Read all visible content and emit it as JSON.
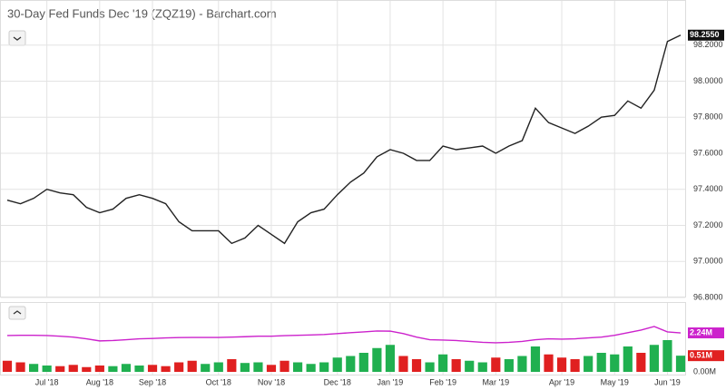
{
  "chart_data": [
    {
      "type": "line",
      "title": "30-Day Fed Funds Dec '19 (ZQZ19) - Barchart.com",
      "categories": [
        null,
        null,
        null,
        "Jul '18",
        null,
        null,
        null,
        "Aug '18",
        null,
        null,
        null,
        "Sep '18",
        null,
        null,
        null,
        null,
        "Oct '18",
        null,
        null,
        null,
        "Nov '18",
        null,
        null,
        null,
        null,
        "Dec '18",
        null,
        null,
        null,
        "Jan '19",
        null,
        null,
        null,
        "Feb '19",
        null,
        null,
        null,
        "Mar '19",
        null,
        null,
        null,
        null,
        "Apr '19",
        null,
        null,
        null,
        "May '19",
        null,
        null,
        null,
        "Jun '19",
        null
      ],
      "series": [
        {
          "color": "#222222",
          "values": [
            97.34,
            97.32,
            97.35,
            97.4,
            97.38,
            97.37,
            97.3,
            97.27,
            97.29,
            97.35,
            97.37,
            97.35,
            97.32,
            97.22,
            97.17,
            97.17,
            97.17,
            97.1,
            97.13,
            97.2,
            97.15,
            97.1,
            97.22,
            97.27,
            97.29,
            97.37,
            97.44,
            97.49,
            97.58,
            97.62,
            97.6,
            97.56,
            97.56,
            97.64,
            97.62,
            97.63,
            97.64,
            97.6,
            97.64,
            97.67,
            97.85,
            97.77,
            97.74,
            97.71,
            97.75,
            97.8,
            97.81,
            97.89,
            97.85,
            97.95,
            98.22,
            98.255
          ],
          "value_labels": [
            null,
            null,
            null,
            null,
            null,
            null,
            null,
            null,
            null,
            null,
            null,
            null,
            null,
            null,
            null,
            null,
            null,
            null,
            null,
            null,
            null,
            null,
            null,
            null,
            null,
            null,
            null,
            null,
            null,
            null,
            null,
            null,
            null,
            null,
            null,
            null,
            null,
            null,
            null,
            null,
            null,
            null,
            null,
            null,
            null,
            null,
            null,
            null,
            null,
            null,
            null,
            "98.2550"
          ]
        }
      ],
      "ylim": [
        96.8,
        98.45
      ],
      "yticks": [
        {
          "value": 96.8,
          "label": "96.8000"
        },
        {
          "value": 97.0,
          "label": "97.0000"
        },
        {
          "value": 97.2,
          "label": "97.2000"
        },
        {
          "value": 97.4,
          "label": "97.4000"
        },
        {
          "value": 97.6,
          "label": "97.6000"
        },
        {
          "value": 97.8,
          "label": "97.8000"
        },
        {
          "value": 98.0,
          "label": "98.0000"
        },
        {
          "value": 98.2,
          "label": "98.2000"
        }
      ],
      "grid": true
    },
    {
      "type": "bar",
      "series": [
        {
          "color": "#e02020",
          "up_color": "#20b050",
          "values": [
            0.35,
            0.3,
            0.25,
            0.2,
            0.18,
            0.22,
            0.15,
            0.2,
            0.18,
            0.25,
            0.2,
            0.22,
            0.18,
            0.3,
            0.35,
            0.25,
            0.3,
            0.4,
            0.28,
            0.3,
            0.22,
            0.35,
            0.3,
            0.25,
            0.3,
            0.45,
            0.5,
            0.6,
            0.75,
            0.85,
            0.5,
            0.4,
            0.3,
            0.55,
            0.4,
            0.35,
            0.3,
            0.45,
            0.4,
            0.5,
            0.8,
            0.55,
            0.45,
            0.4,
            0.5,
            0.6,
            0.55,
            0.8,
            0.6,
            0.85,
            1.0,
            0.51
          ],
          "value_labels": [
            null,
            null,
            null,
            null,
            null,
            null,
            null,
            null,
            null,
            null,
            null,
            null,
            null,
            null,
            null,
            null,
            null,
            null,
            null,
            null,
            null,
            null,
            null,
            null,
            null,
            null,
            null,
            null,
            null,
            null,
            null,
            null,
            null,
            null,
            null,
            null,
            null,
            null,
            null,
            null,
            null,
            null,
            null,
            null,
            null,
            null,
            null,
            null,
            null,
            null,
            null,
            "0.51M"
          ]
        },
        {
          "color": "#cc22cc",
          "axis": "y2",
          "type": "line",
          "values": [
            2.09,
            2.1,
            2.1,
            2.09,
            2.05,
            2.0,
            1.9,
            1.78,
            1.8,
            1.85,
            1.9,
            1.92,
            1.95,
            1.97,
            1.98,
            1.98,
            1.98,
            2.0,
            2.02,
            2.05,
            2.05,
            2.08,
            2.1,
            2.12,
            2.15,
            2.2,
            2.25,
            2.3,
            2.35,
            2.34,
            2.2,
            2.0,
            1.85,
            1.83,
            1.8,
            1.75,
            1.7,
            1.67,
            1.7,
            1.75,
            1.85,
            1.9,
            1.88,
            1.9,
            1.95,
            2.0,
            2.1,
            2.25,
            2.4,
            2.61,
            2.3,
            2.24
          ],
          "value_labels": [
            null,
            null,
            null,
            null,
            null,
            null,
            null,
            null,
            null,
            null,
            null,
            null,
            null,
            null,
            null,
            null,
            null,
            null,
            null,
            null,
            null,
            null,
            null,
            null,
            null,
            null,
            null,
            null,
            null,
            null,
            null,
            null,
            null,
            null,
            null,
            null,
            null,
            null,
            null,
            null,
            null,
            null,
            null,
            null,
            null,
            null,
            null,
            null,
            null,
            null,
            null,
            "2.24M"
          ]
        }
      ],
      "ylim": [
        0,
        2
      ],
      "yticks": [
        {
          "value": 0,
          "label": "0.00M"
        }
      ],
      "y2lim": [
        0,
        3.65
      ]
    }
  ]
}
